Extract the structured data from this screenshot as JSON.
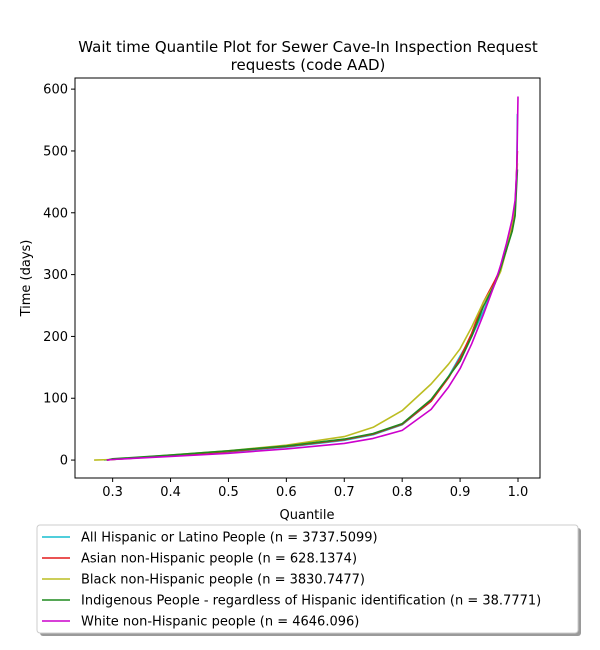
{
  "chart_data": {
    "type": "line",
    "title_lines": [
      "Wait time Quantile Plot for Sewer Cave-In Inspection Request",
      "requests (code AAD)"
    ],
    "xlabel": "Quantile",
    "ylabel": "Time (days)",
    "xlim": [
      0.235,
      1.038
    ],
    "ylim": [
      -29,
      618
    ],
    "xticks": [
      0.3,
      0.4,
      0.5,
      0.6,
      0.7,
      0.8,
      0.9,
      1.0
    ],
    "xtick_labels": [
      "0.3",
      "0.4",
      "0.5",
      "0.6",
      "0.7",
      "0.8",
      "0.9",
      "1.0"
    ],
    "yticks": [
      0,
      100,
      200,
      300,
      400,
      500,
      600
    ],
    "ytick_labels": [
      "0",
      "100",
      "200",
      "300",
      "400",
      "500",
      "600"
    ],
    "grid": false,
    "legend_position": "below",
    "series": [
      {
        "name": "All Hispanic or Latino People (n = 3737.5099)",
        "color": "#17becf",
        "x": [
          0.285,
          0.3,
          0.4,
          0.5,
          0.6,
          0.7,
          0.75,
          0.8,
          0.85,
          0.88,
          0.9,
          0.92,
          0.94,
          0.96,
          0.97,
          0.98,
          0.99,
          0.995,
          0.998,
          0.999
        ],
        "y": [
          0,
          1,
          7,
          13,
          21,
          32,
          41,
          57,
          95,
          135,
          168,
          200,
          240,
          285,
          310,
          345,
          385,
          410,
          470,
          560
        ]
      },
      {
        "name": "Asian non-Hispanic people (n = 628.1374)",
        "color": "#e41a1c",
        "x": [
          0.29,
          0.3,
          0.4,
          0.5,
          0.6,
          0.7,
          0.75,
          0.8,
          0.85,
          0.88,
          0.9,
          0.92,
          0.94,
          0.96,
          0.97,
          0.98,
          0.99,
          0.995,
          0.999
        ],
        "y": [
          0,
          1,
          7,
          14,
          22,
          33,
          42,
          58,
          95,
          133,
          165,
          205,
          255,
          290,
          310,
          340,
          380,
          405,
          500
        ]
      },
      {
        "name": "Black non-Hispanic people (n = 3830.7477)",
        "color": "#bcbd22",
        "x": [
          0.268,
          0.3,
          0.4,
          0.5,
          0.6,
          0.7,
          0.75,
          0.8,
          0.85,
          0.88,
          0.9,
          0.92,
          0.94,
          0.96,
          0.97,
          0.98,
          0.99,
          0.995,
          0.999
        ],
        "y": [
          0,
          1,
          8,
          15,
          24,
          38,
          53,
          80,
          123,
          155,
          180,
          215,
          255,
          285,
          305,
          340,
          385,
          410,
          480
        ]
      },
      {
        "name": "Indigenous People - regardless of Hispanic identification (n = 38.7771)",
        "color": "#1f8a1f",
        "x": [
          0.29,
          0.3,
          0.4,
          0.5,
          0.6,
          0.7,
          0.75,
          0.8,
          0.85,
          0.88,
          0.9,
          0.92,
          0.94,
          0.96,
          0.97,
          0.98,
          0.99,
          0.995,
          0.999
        ],
        "y": [
          0,
          2,
          8,
          15,
          23,
          34,
          43,
          59,
          98,
          135,
          160,
          200,
          248,
          285,
          310,
          340,
          370,
          395,
          470
        ]
      },
      {
        "name": "White non-Hispanic people (n = 4646.096)",
        "color": "#cc00cc",
        "x": [
          0.29,
          0.3,
          0.4,
          0.5,
          0.6,
          0.7,
          0.75,
          0.8,
          0.85,
          0.88,
          0.9,
          0.92,
          0.94,
          0.96,
          0.97,
          0.98,
          0.99,
          0.995,
          0.998,
          1.0
        ],
        "y": [
          0,
          1,
          6,
          11,
          18,
          27,
          35,
          48,
          82,
          118,
          148,
          188,
          235,
          285,
          315,
          350,
          390,
          420,
          470,
          588
        ]
      }
    ]
  }
}
